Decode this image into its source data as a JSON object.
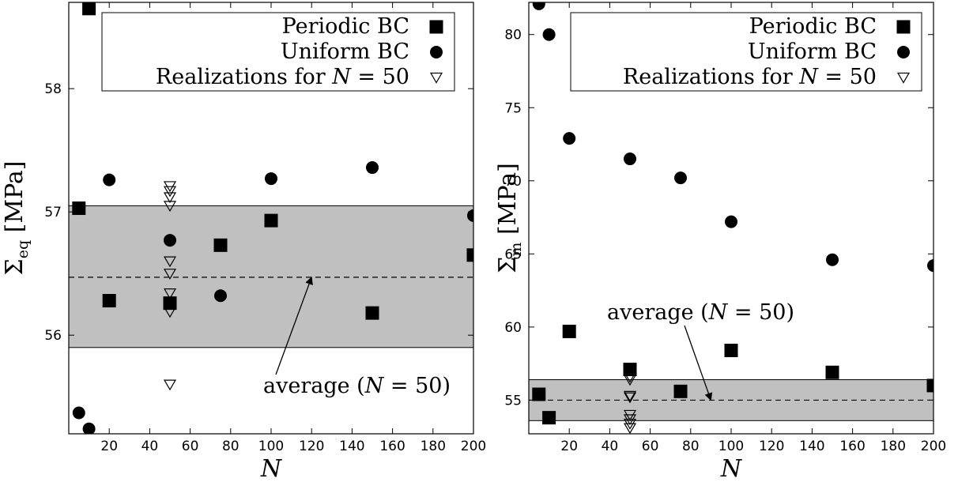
{
  "chart_data": [
    {
      "type": "scatter",
      "title": "",
      "xlabel": "N",
      "ylabel": "Σ",
      "ylabel_sub": "eq",
      "ylabel_unit": "[MPa]",
      "xlim": [
        0,
        200
      ],
      "ylim": [
        55.2,
        58.7
      ],
      "xticks": [
        20,
        40,
        60,
        80,
        100,
        120,
        140,
        160,
        180,
        200
      ],
      "yticks": [
        56,
        57,
        58
      ],
      "grid": false,
      "legend_position": "top-right",
      "band": {
        "low": 55.9,
        "high": 57.05,
        "average": 56.47,
        "color": "#c0c0c0"
      },
      "annotation": {
        "prefix": "average (",
        "var": "N",
        "suffix": " = 50)",
        "target_x": 120,
        "target_y": 56.47
      },
      "series": [
        {
          "name": "Periodic BC",
          "marker": "square",
          "x": [
            5,
            20,
            50,
            75,
            100,
            150,
            200
          ],
          "y": [
            57.03,
            56.28,
            56.26,
            56.73,
            56.93,
            56.18,
            56.65
          ]
        },
        {
          "name": "Uniform BC",
          "marker": "circle",
          "x": [
            5,
            10,
            20,
            50,
            75,
            100,
            150,
            200
          ],
          "y": [
            55.37,
            55.24,
            57.26,
            56.77,
            56.32,
            57.27,
            57.36,
            56.97
          ]
        },
        {
          "name_prefix": "Realizations for ",
          "name_var": "N",
          "name_suffix": " = 50",
          "marker": "triangle-down-open",
          "x": [
            50,
            50,
            50,
            50,
            50,
            50,
            50,
            50,
            50,
            50
          ],
          "y": [
            57.21,
            57.12,
            57.05,
            56.6,
            56.5,
            56.34,
            56.27,
            56.19,
            55.6,
            57.17
          ]
        }
      ],
      "extra_points": [
        {
          "marker": "square",
          "x": 10,
          "y": 58.65
        }
      ]
    },
    {
      "type": "scatter",
      "title": "",
      "xlabel": "N",
      "ylabel": "Σ",
      "ylabel_sub": "m",
      "ylabel_unit": "[MPa]",
      "xlim": [
        0,
        200
      ],
      "ylim": [
        52.7,
        82.2
      ],
      "xticks": [
        20,
        40,
        60,
        80,
        100,
        120,
        140,
        160,
        180,
        200
      ],
      "yticks": [
        55,
        60,
        65,
        70,
        75,
        80
      ],
      "grid": false,
      "legend_position": "top-right",
      "band": {
        "low": 53.6,
        "high": 56.4,
        "average": 55.0,
        "color": "#c0c0c0"
      },
      "annotation": {
        "prefix": "average (",
        "var": "N",
        "suffix": " = 50)",
        "target_x": 90,
        "target_y": 55.0
      },
      "series": [
        {
          "name": "Periodic BC",
          "marker": "square",
          "x": [
            5,
            10,
            20,
            50,
            75,
            100,
            150,
            200
          ],
          "y": [
            55.4,
            53.8,
            59.7,
            57.1,
            55.6,
            58.4,
            56.9,
            56.0
          ]
        },
        {
          "name": "Uniform BC",
          "marker": "circle",
          "x": [
            5,
            10,
            20,
            50,
            75,
            100,
            150,
            200
          ],
          "y": [
            82.1,
            80.0,
            72.9,
            71.5,
            70.2,
            67.2,
            64.6,
            64.2
          ]
        },
        {
          "name_prefix": "Realizations for ",
          "name_var": "N",
          "name_suffix": " = 50",
          "marker": "triangle-down-open",
          "x": [
            50,
            50,
            50,
            50,
            50,
            50,
            50,
            50
          ],
          "y": [
            56.4,
            55.3,
            55.2,
            54.0,
            53.7,
            53.4,
            53.1,
            56.6
          ]
        }
      ],
      "extra_points": []
    }
  ]
}
